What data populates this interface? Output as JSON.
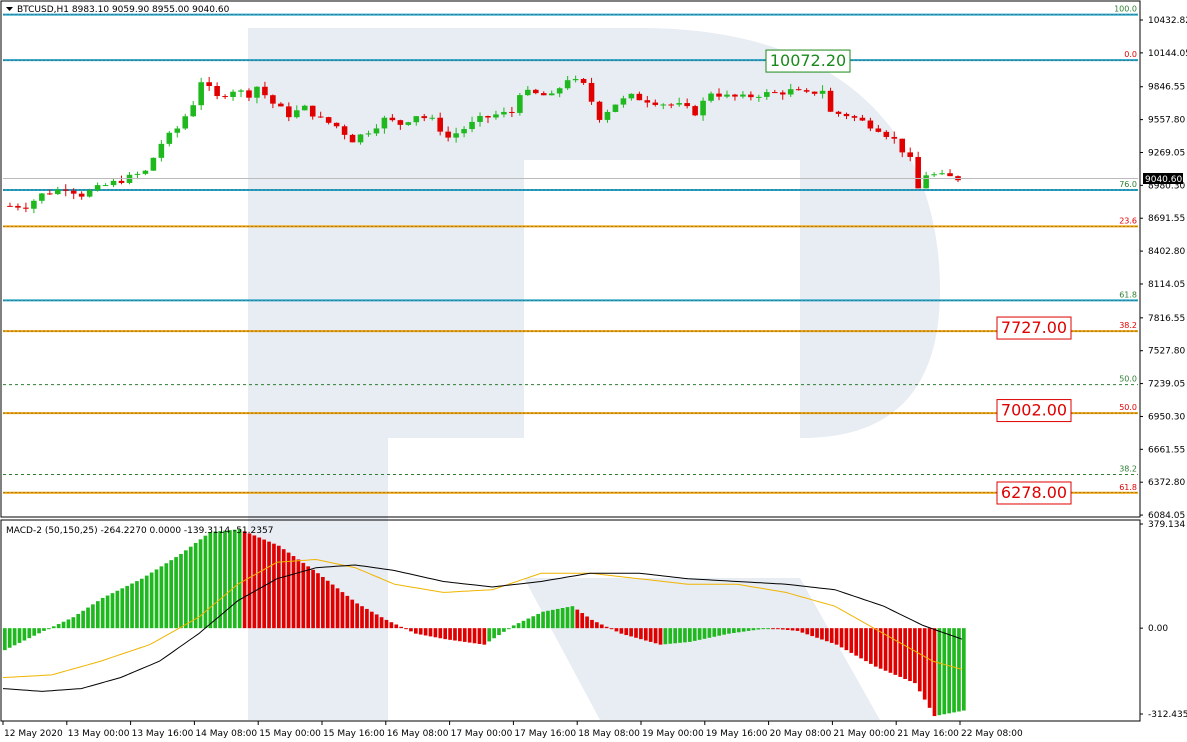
{
  "header": {
    "symbol_info": "BTCUSD,H1  8983.10 9059.90 8955.00 9040.60",
    "current_price_label": "9040.60"
  },
  "chart_data": [
    {
      "type": "candlestick",
      "symbol": "BTCUSD",
      "timeframe": "H1",
      "ohlc_last": {
        "open": 8983.1,
        "high": 9059.9,
        "low": 8955.0,
        "close": 9040.6
      },
      "ylim": [
        6084.63,
        10432.82
      ],
      "y_ticks": [
        "10432.82",
        "10144.05",
        "9846.55",
        "9557.80",
        "9269.05",
        "8980.30",
        "8691.55",
        "8402.80",
        "8114.05",
        "7816.55",
        "7527.80",
        "7239.05",
        "6950.30",
        "6661.55",
        "6372.80",
        "6084.05"
      ],
      "x_ticks": [
        "12 May 2020",
        "13 May 00:00",
        "13 May 16:00",
        "14 May 08:00",
        "15 May 00:00",
        "15 May 16:00",
        "16 May 08:00",
        "17 May 00:00",
        "17 May 16:00",
        "18 May 08:00",
        "19 May 00:00",
        "19 May 16:00",
        "20 May 08:00",
        "21 May 00:00",
        "21 May 16:00",
        "22 May 08:00"
      ],
      "close_path": [
        [
          0,
          8800
        ],
        [
          3,
          8800
        ],
        [
          5,
          8900
        ],
        [
          8,
          8960
        ],
        [
          10,
          8900
        ],
        [
          13,
          8980
        ],
        [
          16,
          9050
        ],
        [
          18,
          9100
        ],
        [
          20,
          9350
        ],
        [
          22,
          9480
        ],
        [
          24,
          9700
        ],
        [
          25,
          9900
        ],
        [
          27,
          9750
        ],
        [
          29,
          9820
        ],
        [
          31,
          9780
        ],
        [
          32,
          9850
        ],
        [
          34,
          9700
        ],
        [
          36,
          9600
        ],
        [
          38,
          9660
        ],
        [
          40,
          9560
        ],
        [
          42,
          9500
        ],
        [
          44,
          9380
        ],
        [
          46,
          9460
        ],
        [
          48,
          9560
        ],
        [
          50,
          9520
        ],
        [
          52,
          9600
        ],
        [
          54,
          9550
        ],
        [
          56,
          9400
        ],
        [
          58,
          9480
        ],
        [
          60,
          9560
        ],
        [
          62,
          9600
        ],
        [
          64,
          9620
        ],
        [
          65,
          9800
        ],
        [
          67,
          9780
        ],
        [
          69,
          9760
        ],
        [
          71,
          9920
        ],
        [
          73,
          9860
        ],
        [
          75,
          9580
        ],
        [
          77,
          9700
        ],
        [
          79,
          9760
        ],
        [
          81,
          9730
        ],
        [
          83,
          9700
        ],
        [
          85,
          9680
        ],
        [
          87,
          9620
        ],
        [
          89,
          9800
        ],
        [
          91,
          9760
        ],
        [
          93,
          9750
        ],
        [
          95,
          9780
        ],
        [
          97,
          9790
        ],
        [
          99,
          9810
        ],
        [
          101,
          9780
        ],
        [
          103,
          9820
        ],
        [
          104,
          9620
        ],
        [
          106,
          9600
        ],
        [
          108,
          9540
        ],
        [
          110,
          9480
        ],
        [
          112,
          9380
        ],
        [
          114,
          9200
        ],
        [
          115,
          8950
        ],
        [
          116,
          9080
        ],
        [
          118,
          9060
        ],
        [
          120,
          9040.6
        ]
      ],
      "fib_levels": [
        {
          "label": "100.0",
          "price": 10480,
          "color": "#1fa3c8",
          "style": "solid"
        },
        {
          "label": "0.0",
          "price": 10080,
          "color": "#1fa3c8",
          "style": "solid",
          "label_color": "#e00000"
        },
        {
          "label": "76.0",
          "price": 8940,
          "color": "#1fa3c8",
          "style": "solid"
        },
        {
          "label": "23.6",
          "price": 8620,
          "color": "#f0a000",
          "style": "solid",
          "label_color": "#e00000"
        },
        {
          "label": "61.8",
          "price": 7970,
          "color": "#1fa3c8",
          "style": "solid"
        },
        {
          "label": "38.2",
          "price": 7700,
          "color": "#f0a000",
          "style": "solid",
          "label_color": "#e00000"
        },
        {
          "label": "50.0",
          "price": 7230,
          "color": "#2e7d32",
          "style": "dashed",
          "label_color": "#2e7d32"
        },
        {
          "label": "50.0",
          "price": 6980,
          "color": "#f0a000",
          "style": "solid",
          "label_color": "#e00000"
        },
        {
          "label": "38.2",
          "price": 6440,
          "color": "#2e7d32",
          "style": "dashed",
          "label_color": "#2e7d32"
        },
        {
          "label": "61.8",
          "price": 6280,
          "color": "#f0a000",
          "style": "solid",
          "label_color": "#e00000"
        }
      ],
      "price_callouts": [
        {
          "text": "10072.20",
          "price": 10072.2,
          "color": "#1a8a1a",
          "anchor": "upper"
        },
        {
          "text": "7727.00",
          "price": 7727.0,
          "color": "#e00000",
          "anchor": "lower"
        },
        {
          "text": "7002.00",
          "price": 7002.0,
          "color": "#e00000",
          "anchor": "lower"
        },
        {
          "text": "6278.00",
          "price": 6278.0,
          "color": "#e00000",
          "anchor": "lower"
        }
      ],
      "colors": {
        "bull": "#1fb81f",
        "bear": "#e00000",
        "grid_watermark": "#e8ecf3"
      }
    },
    {
      "type": "histogram",
      "name": "MACD-2 (50,150,25) -264.2270 0.0000 -139.3114 -51.2357",
      "ylim": [
        -312.4354,
        379.134
      ],
      "y_ticks": [
        "379.134",
        "0.00",
        "-312.4354"
      ],
      "hist_path": [
        [
          0,
          -80
        ],
        [
          8,
          -10
        ],
        [
          14,
          40
        ],
        [
          20,
          110
        ],
        [
          28,
          180
        ],
        [
          36,
          270
        ],
        [
          42,
          350
        ],
        [
          48,
          360
        ],
        [
          56,
          300
        ],
        [
          64,
          200
        ],
        [
          72,
          90
        ],
        [
          78,
          30
        ],
        [
          84,
          -20
        ],
        [
          90,
          -40
        ],
        [
          98,
          -60
        ],
        [
          104,
          10
        ],
        [
          110,
          60
        ],
        [
          116,
          80
        ],
        [
          120,
          30
        ],
        [
          126,
          -20
        ],
        [
          134,
          -60
        ],
        [
          140,
          -50
        ],
        [
          148,
          -20
        ],
        [
          156,
          0
        ],
        [
          162,
          -10
        ],
        [
          170,
          -60
        ],
        [
          178,
          -140
        ],
        [
          186,
          -200
        ],
        [
          190,
          -320
        ],
        [
          196,
          -300
        ]
      ],
      "signal_path": [
        [
          0,
          -180
        ],
        [
          10,
          -170
        ],
        [
          20,
          -120
        ],
        [
          30,
          -60
        ],
        [
          40,
          40
        ],
        [
          48,
          160
        ],
        [
          56,
          240
        ],
        [
          64,
          250
        ],
        [
          72,
          220
        ],
        [
          80,
          160
        ],
        [
          90,
          130
        ],
        [
          100,
          140
        ],
        [
          110,
          200
        ],
        [
          120,
          200
        ],
        [
          130,
          180
        ],
        [
          140,
          160
        ],
        [
          150,
          160
        ],
        [
          160,
          130
        ],
        [
          170,
          80
        ],
        [
          180,
          -20
        ],
        [
          190,
          -120
        ],
        [
          196,
          -150
        ]
      ],
      "main_path": [
        [
          0,
          -220
        ],
        [
          8,
          -230
        ],
        [
          16,
          -220
        ],
        [
          24,
          -180
        ],
        [
          32,
          -120
        ],
        [
          40,
          -20
        ],
        [
          48,
          100
        ],
        [
          56,
          180
        ],
        [
          64,
          220
        ],
        [
          72,
          230
        ],
        [
          80,
          210
        ],
        [
          90,
          170
        ],
        [
          100,
          150
        ],
        [
          110,
          170
        ],
        [
          120,
          200
        ],
        [
          130,
          200
        ],
        [
          140,
          180
        ],
        [
          150,
          170
        ],
        [
          160,
          160
        ],
        [
          170,
          140
        ],
        [
          180,
          80
        ],
        [
          188,
          10
        ],
        [
          196,
          -40
        ]
      ],
      "colors": {
        "bull": "#1fb81f",
        "bear": "#e00000",
        "signal": "#f0b400",
        "main": "#000000"
      }
    }
  ]
}
